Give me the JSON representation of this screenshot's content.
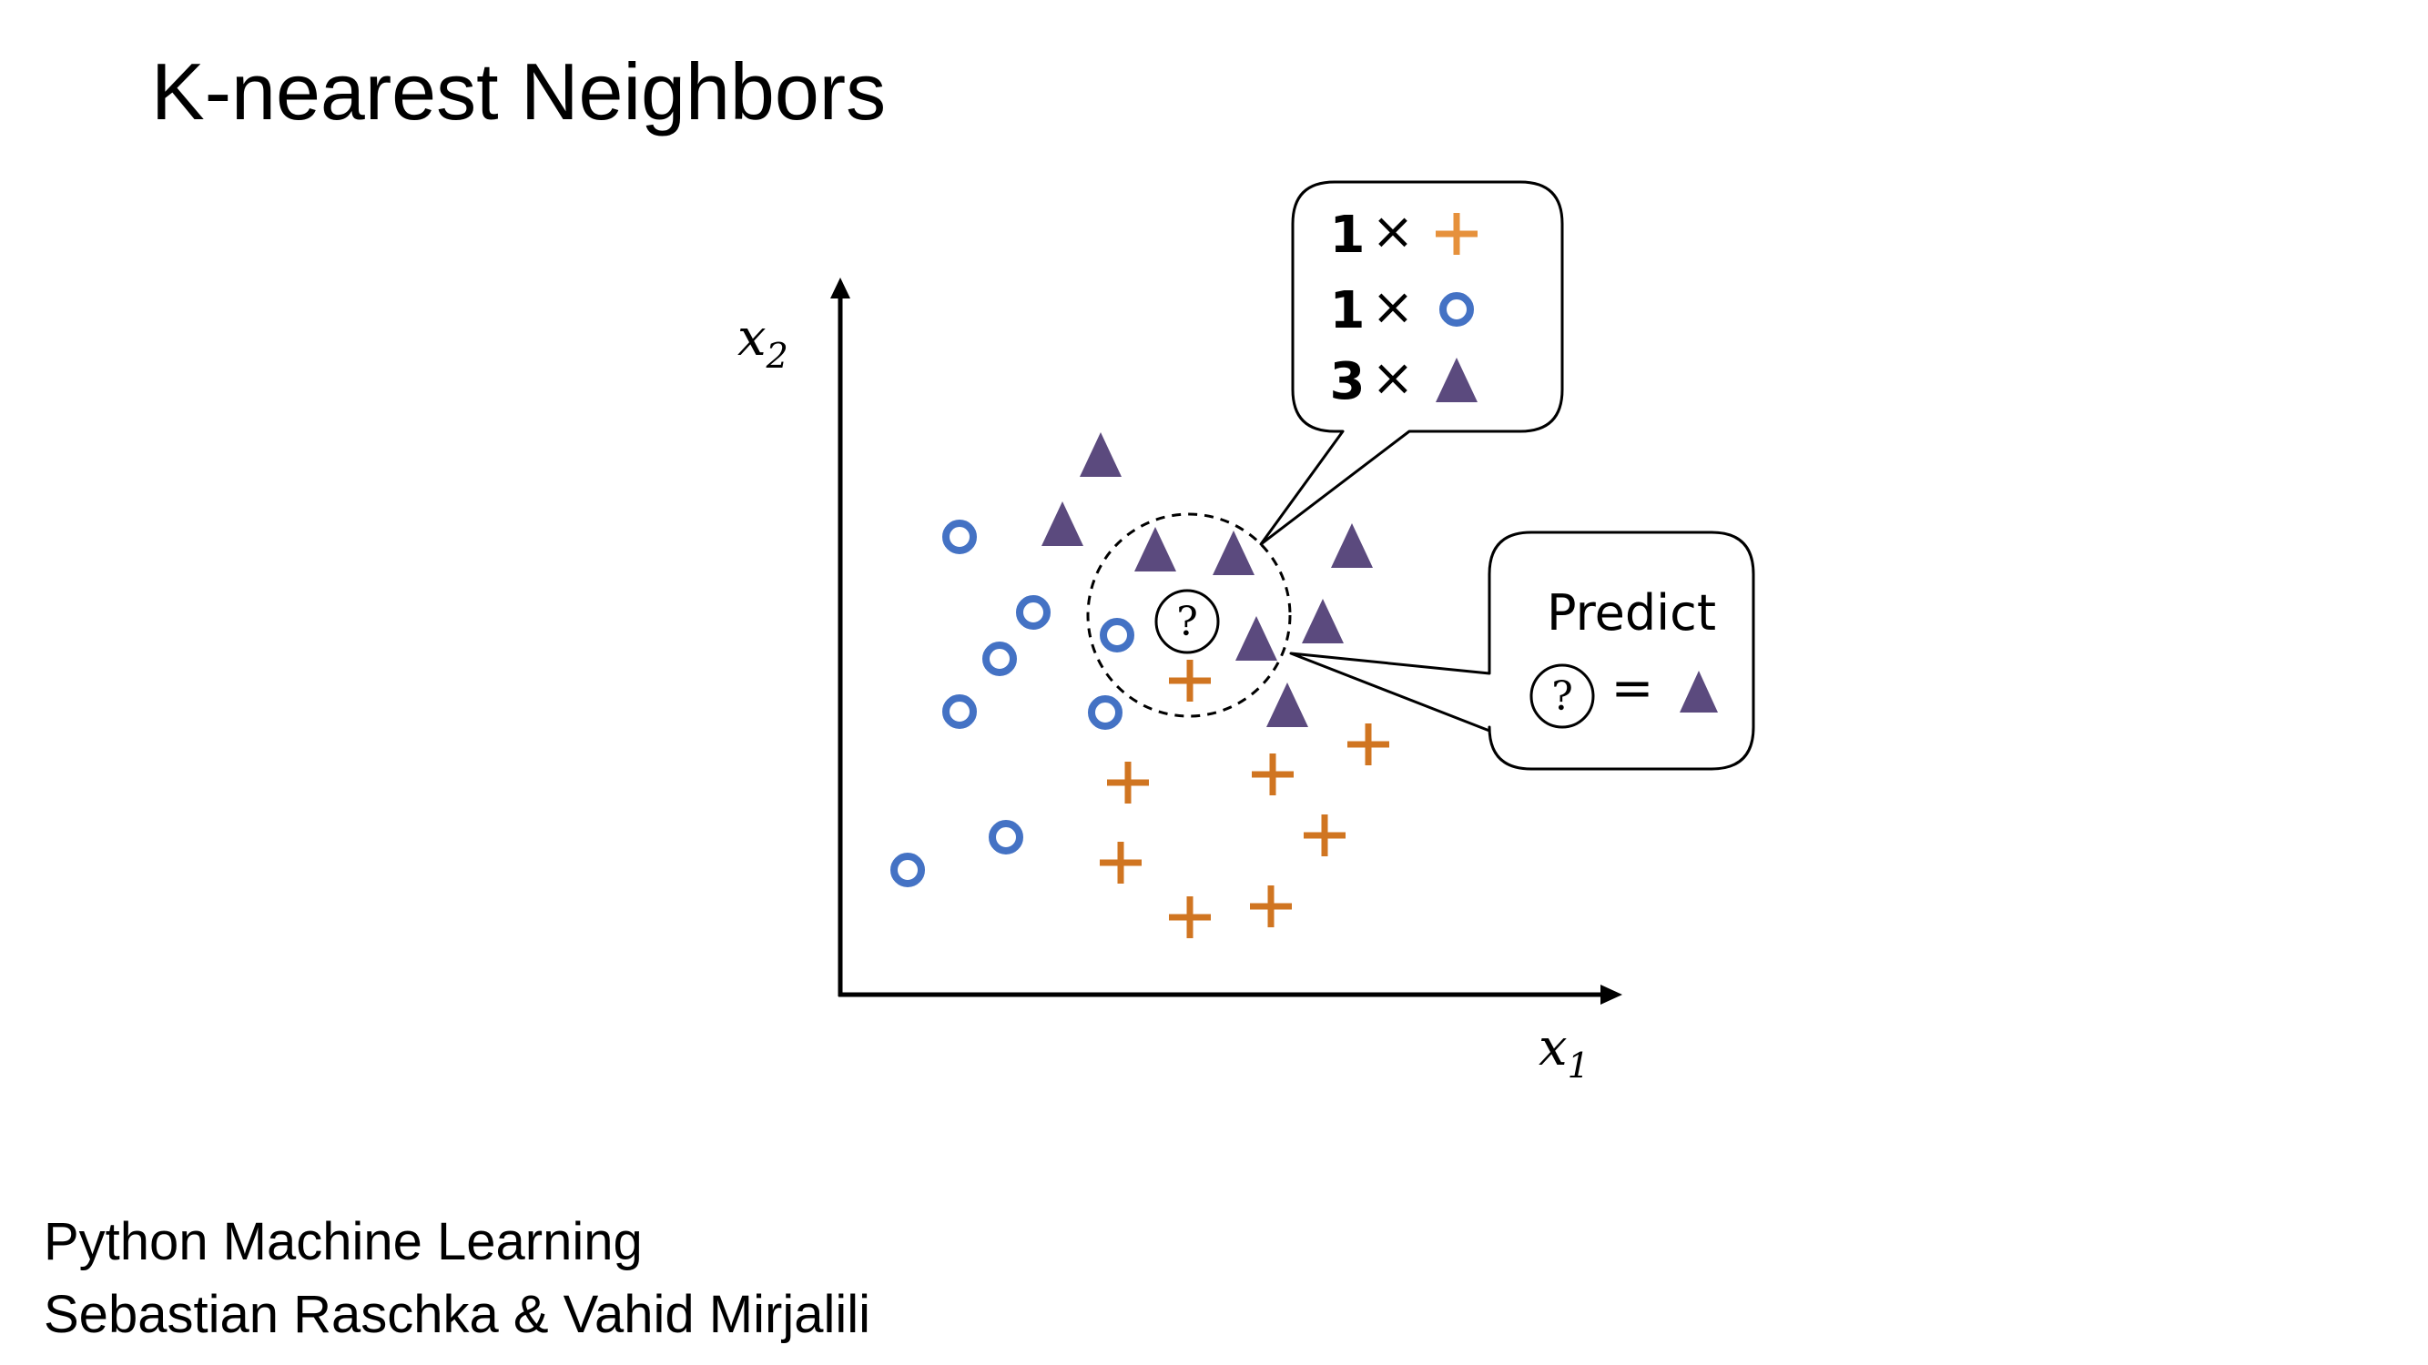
{
  "title": "K-nearest Neighbors",
  "credits": {
    "line1": "Python Machine Learning",
    "line2": "Sebastian Raschka & Vahid Mirjalili"
  },
  "axes": {
    "x_label": "x",
    "x_sub": "1",
    "y_label": "x",
    "y_sub": "2"
  },
  "query_symbol": "?",
  "vote_box": {
    "rows": [
      {
        "count": "1",
        "times": "×",
        "class": "plus"
      },
      {
        "count": "1",
        "times": "×",
        "class": "circle"
      },
      {
        "count": "3",
        "times": "×",
        "class": "triangle"
      }
    ]
  },
  "predict_box": {
    "label": "Predict",
    "equals": "=",
    "result_class": "triangle"
  },
  "colors": {
    "triangle": "#5b4a7e",
    "circle": "#4472c4",
    "plus": "#d07521",
    "plus_light": "#e6913c"
  }
}
